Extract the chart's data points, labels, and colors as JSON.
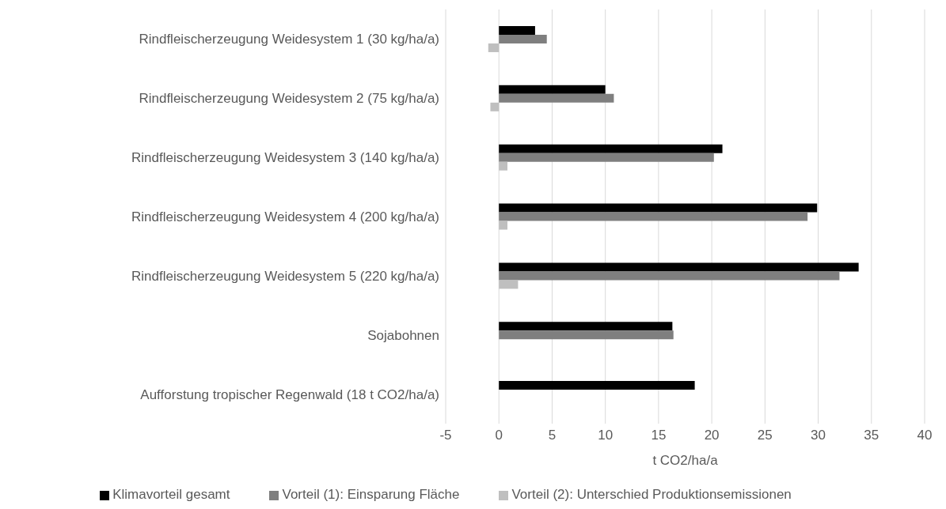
{
  "chart_data": {
    "type": "bar",
    "orientation": "horizontal",
    "xlabel": "t CO2/ha/a",
    "categories": [
      "Rindfleischerzeugung Weidesystem 1 (30 kg/ha/a)",
      "Rindfleischerzeugung Weidesystem 2 (75 kg/ha/a)",
      "Rindfleischerzeugung Weidesystem 3 (140 kg/ha/a)",
      "Rindfleischerzeugung Weidesystem 4 (200 kg/ha/a)",
      "Rindfleischerzeugung Weidesystem 5 (220 kg/ha/a)",
      "Sojabohnen",
      "Aufforstung tropischer Regenwald (18 t CO2/ha/a)"
    ],
    "series": [
      {
        "name": "Klimavorteil gesamt",
        "color": "#000000",
        "values": [
          3.4,
          10.0,
          21.0,
          29.9,
          33.8,
          16.3,
          18.4
        ]
      },
      {
        "name": "Vorteil (1): Einsparung Fläche",
        "color": "#7f7f7f",
        "values": [
          4.5,
          10.8,
          20.2,
          29.0,
          32.0,
          16.4,
          null
        ]
      },
      {
        "name": "Vorteil (2): Unterschied Produktionsemissionen",
        "color": "#bfbfbf",
        "values": [
          -1.0,
          -0.8,
          0.8,
          0.8,
          1.8,
          0,
          null
        ]
      }
    ],
    "xlim": [
      -5,
      40
    ],
    "xticks": [
      -5,
      0,
      5,
      10,
      15,
      20,
      25,
      30,
      35,
      40
    ],
    "grid": "x",
    "legend": "bottom"
  }
}
